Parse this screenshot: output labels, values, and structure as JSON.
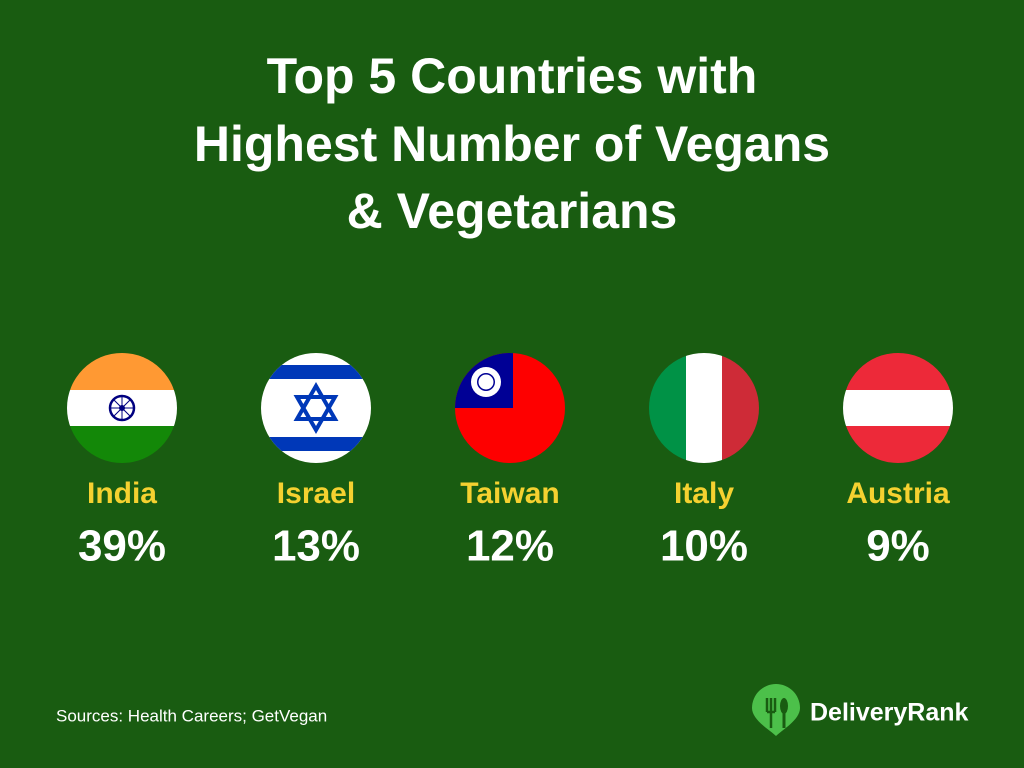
{
  "title_lines": [
    "Top 5 Countries with",
    "Highest Number of Vegans",
    "& Vegetarians"
  ],
  "items": [
    {
      "country": "India",
      "value": "39%"
    },
    {
      "country": "Israel",
      "value": "13%"
    },
    {
      "country": "Taiwan",
      "value": "12%"
    },
    {
      "country": "Italy",
      "value": "10%"
    },
    {
      "country": "Austria",
      "value": "9%"
    }
  ],
  "source": "Sources: Health Careers; GetVegan",
  "brand": "DeliveryRank"
}
